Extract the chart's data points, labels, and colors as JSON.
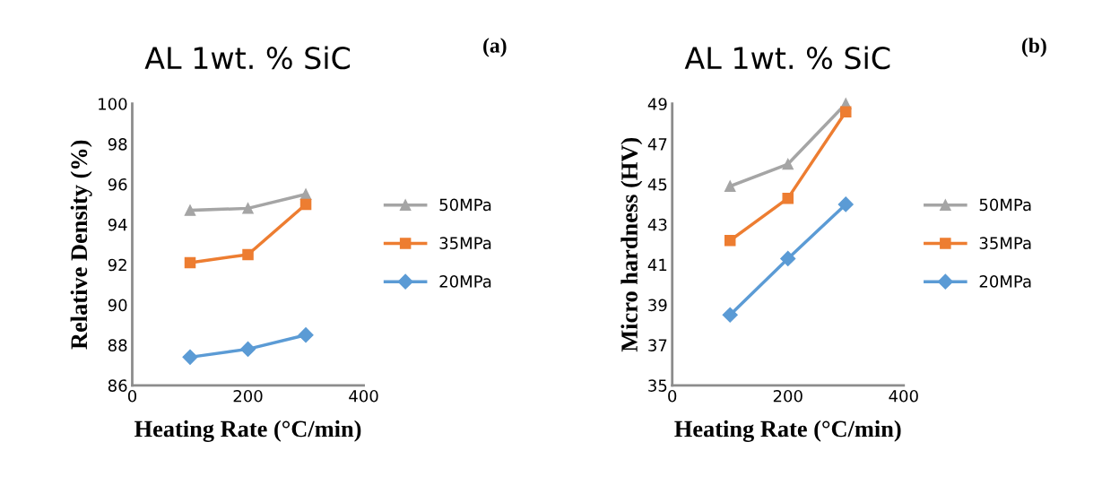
{
  "chart_data": [
    {
      "type": "line",
      "title": "AL 1wt. % SiC",
      "annotations": [
        "(a)"
      ],
      "xlabel": "Heating Rate (°C/min)",
      "ylabel": "Relative Density (%)",
      "x": [
        100,
        200,
        300
      ],
      "xlim": [
        0,
        400
      ],
      "xticks": [
        0,
        200,
        400
      ],
      "ylim": [
        86,
        100
      ],
      "yticks": [
        86,
        88,
        90,
        92,
        94,
        96,
        98,
        100
      ],
      "grid": false,
      "legend": "right",
      "line_style": "solid",
      "series": [
        {
          "name": "50MPa",
          "color": "#a5a5a5",
          "marker": "triangle",
          "values": [
            94.7,
            94.8,
            95.5
          ]
        },
        {
          "name": "35MPa",
          "color": "#ed7d31",
          "marker": "square",
          "values": [
            92.1,
            92.5,
            95.0
          ]
        },
        {
          "name": "20MPa",
          "color": "#5b9bd5",
          "marker": "diamond",
          "values": [
            87.4,
            87.8,
            88.5
          ]
        }
      ]
    },
    {
      "type": "line",
      "title": "AL 1wt. % SiC",
      "annotations": [
        "(b)"
      ],
      "xlabel": "Heating Rate (°C/min)",
      "ylabel": "Micro hardness (HV)",
      "x": [
        100,
        200,
        300
      ],
      "xlim": [
        0,
        400
      ],
      "xticks": [
        0,
        200,
        400
      ],
      "ylim": [
        35,
        49
      ],
      "yticks": [
        35,
        37,
        39,
        41,
        43,
        45,
        47,
        49
      ],
      "grid": false,
      "legend": "right",
      "line_style": "solid",
      "series": [
        {
          "name": "50MPa",
          "color": "#a5a5a5",
          "marker": "triangle",
          "values": [
            44.9,
            46.0,
            49.0
          ]
        },
        {
          "name": "35MPa",
          "color": "#ed7d31",
          "marker": "square",
          "values": [
            42.2,
            44.3,
            48.6
          ]
        },
        {
          "name": "20MPa",
          "color": "#5b9bd5",
          "marker": "diamond",
          "values": [
            38.5,
            41.3,
            44.0
          ]
        }
      ]
    }
  ]
}
